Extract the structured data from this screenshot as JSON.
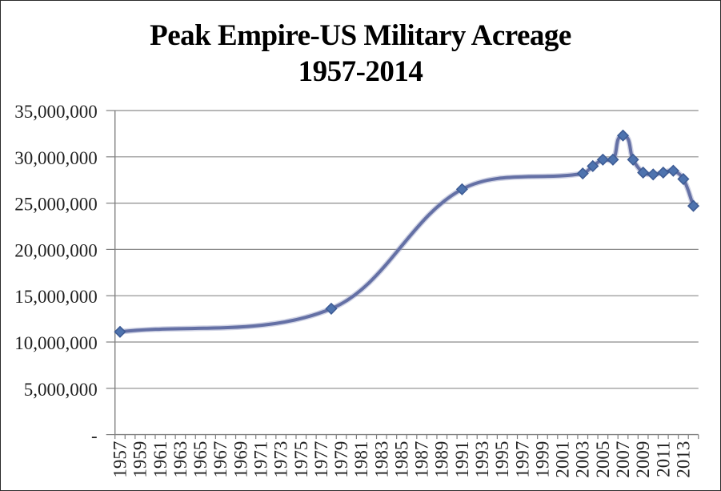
{
  "chart_data": {
    "type": "line",
    "title": "Peak Empire-US Military Acreage",
    "subtitle": "1957-2014",
    "legend": "none",
    "grid": "horizontal",
    "x_axis": {
      "categories_start": 1957,
      "categories_end": 2014,
      "tick_label_years": [
        1957,
        1959,
        1961,
        1963,
        1965,
        1967,
        1969,
        1971,
        1973,
        1975,
        1977,
        1979,
        1981,
        1983,
        1985,
        1987,
        1989,
        1991,
        1993,
        1995,
        1997,
        1999,
        2001,
        2003,
        2005,
        2007,
        2009,
        2011,
        2013
      ]
    },
    "y_axis": {
      "min": 0,
      "max": 35000000,
      "step": 5000000,
      "tick_labels_top_to_bottom": [
        "35,000,000",
        "30,000,000",
        "25,000,000",
        "20,000,000",
        "15,000,000",
        "10,000,000",
        "5,000,000",
        "-"
      ]
    },
    "series": [
      {
        "style": "smoothed-line-with-diamond-markers",
        "points": [
          [
            1957,
            11100000
          ],
          [
            1978,
            13600000
          ],
          [
            1991,
            26500000
          ],
          [
            2003,
            28200000
          ],
          [
            2004,
            29000000
          ],
          [
            2005,
            29700000
          ],
          [
            2006,
            29700000
          ],
          [
            2007,
            32300000
          ],
          [
            2008,
            29700000
          ],
          [
            2009,
            28300000
          ],
          [
            2010,
            28100000
          ],
          [
            2011,
            28300000
          ],
          [
            2012,
            28500000
          ],
          [
            2013,
            27600000
          ],
          [
            2014,
            24700000
          ]
        ]
      }
    ],
    "colors": {
      "line": "#6470A5",
      "line_halo": "#9AA0C6",
      "marker_fill": "#4E73AE",
      "marker_stroke": "#3D5B94",
      "axis": "#808080",
      "gridline": "#8C8C8C",
      "tick_label": "#1F1F1F",
      "title": "#000000",
      "background": "#FFFFFF",
      "border": "#2B2B2B"
    }
  }
}
